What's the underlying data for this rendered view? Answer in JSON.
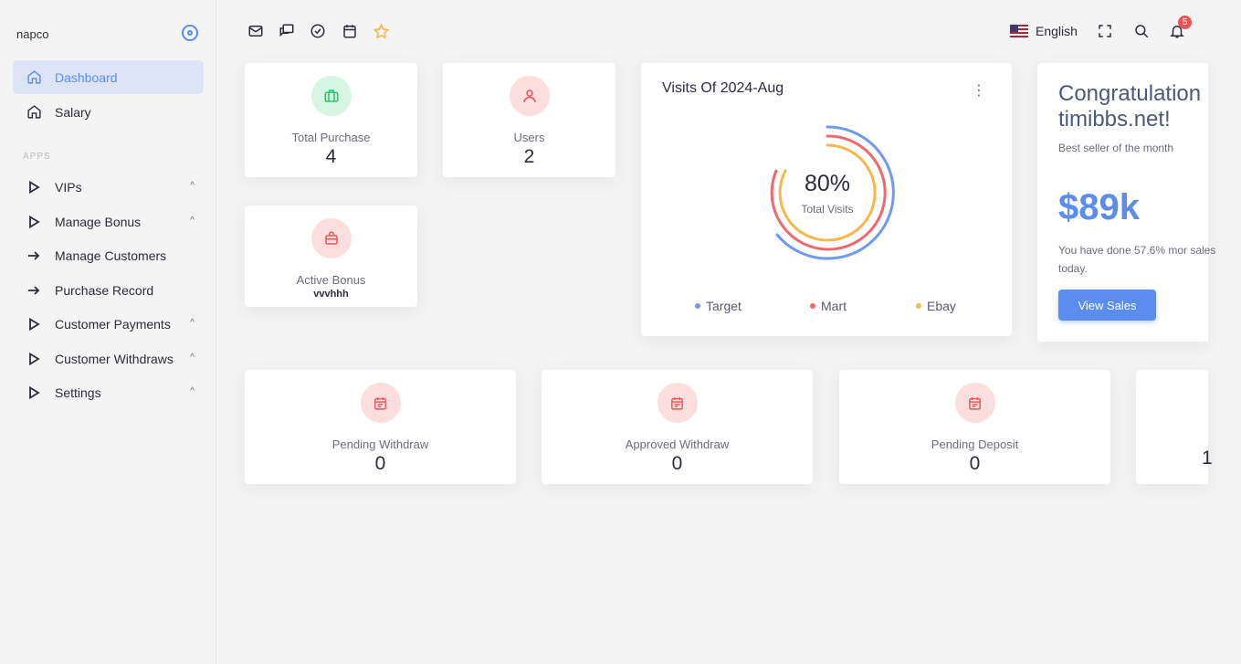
{
  "sidebar": {
    "brand": "napco",
    "apps_label": "APPS",
    "items": [
      {
        "label": "Dashboard",
        "icon": "home-icon",
        "active": true
      },
      {
        "label": "Salary",
        "icon": "home-icon"
      },
      {
        "label": "VIPs",
        "icon": "triangle-right-icon",
        "chevron": "^"
      },
      {
        "label": "Manage Bonus",
        "icon": "triangle-right-icon",
        "chevron": "^"
      },
      {
        "label": "Manage Customers",
        "icon": "arrow-right-icon"
      },
      {
        "label": "Purchase Record",
        "icon": "arrow-right-icon"
      },
      {
        "label": "Customer Payments",
        "icon": "triangle-right-icon",
        "chevron": "^"
      },
      {
        "label": "Customer Withdraws",
        "icon": "triangle-right-icon",
        "chevron": "^"
      },
      {
        "label": "Settings",
        "icon": "triangle-right-icon",
        "chevron": "^"
      }
    ]
  },
  "topbar": {
    "language": "English",
    "notification_count": "5",
    "icons": [
      "mail-icon",
      "chat-icon",
      "check-circle-icon",
      "calendar-icon",
      "star-icon",
      "fullscreen-icon",
      "search-icon",
      "bell-icon"
    ]
  },
  "stats": {
    "total_purchase": {
      "label": "Total Purchase",
      "value": "4"
    },
    "users": {
      "label": "Users",
      "value": "2"
    },
    "active_bonus": {
      "label": "Active Bonus",
      "value": "vvvhhh"
    },
    "pending_withdraw": {
      "label": "Pending Withdraw",
      "value": "0"
    },
    "approved_withdraw": {
      "label": "Approved Withdraw",
      "value": "0"
    },
    "pending_deposit": {
      "label": "Pending Deposit",
      "value": "0"
    },
    "fourth_partial_value": "1"
  },
  "visits_chart": {
    "title": "Visits Of 2024-Aug",
    "center_value": "80%",
    "center_label": "Total Visits",
    "legend": [
      {
        "name": "Target",
        "color": "#6f9bec"
      },
      {
        "name": "Mart",
        "color": "#f0686c"
      },
      {
        "name": "Ebay",
        "color": "#f7b84b"
      }
    ]
  },
  "congrats": {
    "title_line1": "Congratulation",
    "title_line2": "timibbs.net!",
    "subtitle": "Best seller of the month",
    "amount": "$89k",
    "description": "You have done 57.6% mor sales today.",
    "button": "View Sales"
  },
  "colors": {
    "accent": "#5a8dee",
    "green_bg": "#d7f5e3",
    "green": "#28c76f",
    "red_bg": "#fddede",
    "red": "#ea5455"
  }
}
